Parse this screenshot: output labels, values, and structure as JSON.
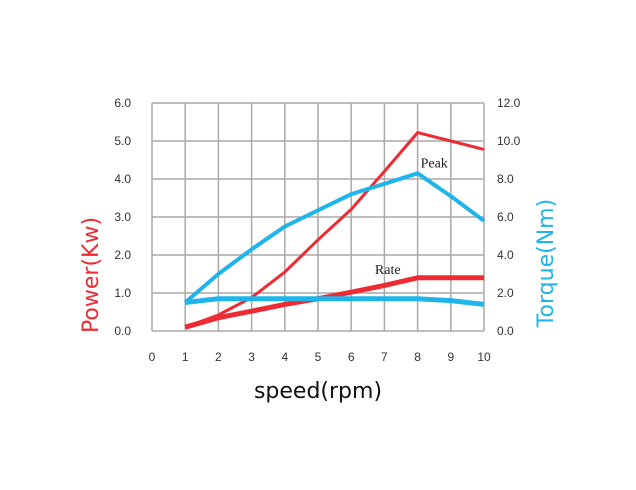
{
  "chart_data": {
    "type": "line",
    "x": [
      1,
      2,
      3,
      4,
      5,
      6,
      7,
      8,
      9,
      10
    ],
    "xlim": [
      0,
      10
    ],
    "x_ticks": [
      "0",
      "1",
      "2",
      "3",
      "4",
      "5",
      "6",
      "7",
      "8",
      "9",
      "10"
    ],
    "xlabel": "speed(rpm)",
    "y_left": {
      "label": "Power(Kw)",
      "ylim": [
        0,
        6
      ],
      "ticks": [
        "0.0",
        "1.0",
        "2.0",
        "3.0",
        "4.0",
        "5.0",
        "6.0"
      ],
      "color": "#ee2a33"
    },
    "y_right": {
      "label": "Torque(Nm)",
      "ylim": [
        0,
        12
      ],
      "ticks": [
        "0.0",
        "2.0",
        "4.0",
        "6.0",
        "8.0",
        "10.0",
        "12.0"
      ],
      "color": "#1fb5ea"
    },
    "grid": true,
    "series": [
      {
        "axis": "left",
        "kind": "peak",
        "color": "#ee2a33",
        "width": 3,
        "values": [
          0.1,
          0.42,
          0.88,
          1.55,
          2.4,
          3.2,
          4.2,
          5.22,
          5.0,
          4.78
        ]
      },
      {
        "axis": "left",
        "kind": "rate",
        "color": "#ee2a33",
        "width": 5,
        "values": [
          0.1,
          0.35,
          0.52,
          0.7,
          0.85,
          1.02,
          1.2,
          1.4,
          1.4,
          1.4
        ]
      },
      {
        "axis": "right",
        "kind": "peak",
        "color": "#1fb5ea",
        "width": 4,
        "values": [
          1.5,
          3.0,
          4.3,
          5.5,
          6.35,
          7.2,
          7.75,
          8.3,
          7.1,
          5.8
        ]
      },
      {
        "axis": "right",
        "kind": "rate",
        "color": "#1fb5ea",
        "width": 5,
        "values": [
          1.5,
          1.7,
          1.7,
          1.7,
          1.7,
          1.7,
          1.7,
          1.7,
          1.6,
          1.4
        ]
      }
    ],
    "annotations": [
      {
        "text": "Peak",
        "x": 8.5,
        "y_left": 4.3
      },
      {
        "text": "Rate",
        "x": 7.1,
        "y_left": 1.5
      }
    ]
  }
}
